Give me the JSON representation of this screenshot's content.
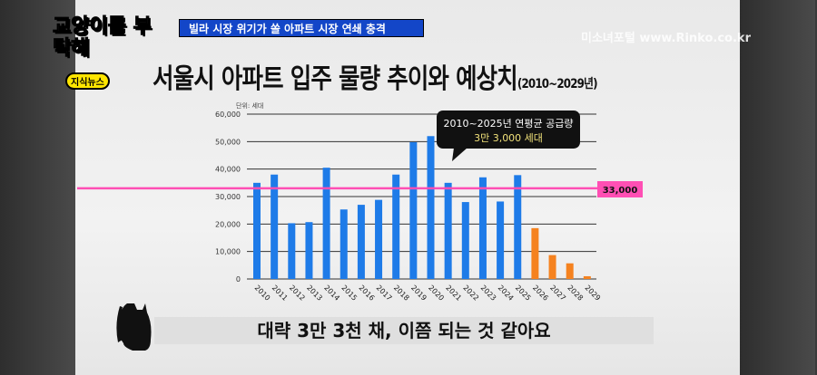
{
  "show": {
    "logo": "교양이를 부탁해",
    "tag": "지식뉴스",
    "banner": "빌라 시장 위기가 쏠 아파트 시장 연쇄 충격",
    "watermark": "미소녀포털 www.Rinko.co.kr"
  },
  "subtitle": "대략 3만 3천 채, 이쯤 되는 것 같아요",
  "chart_data": {
    "type": "bar",
    "title": "서울시 아파트 입주 물량 추이와 예상치",
    "title_suffix": "(2010~2029년)",
    "unit": "단위: 세대",
    "categories": [
      "2010",
      "2011",
      "2012",
      "2013",
      "2014",
      "2015",
      "2016",
      "2017",
      "2018",
      "2019",
      "2020",
      "2021",
      "2022",
      "2023",
      "2024",
      "2025",
      "2026",
      "2027",
      "2028",
      "2029"
    ],
    "values": [
      35000,
      38000,
      20300,
      20700,
      40500,
      25300,
      27000,
      28800,
      38000,
      49800,
      52000,
      35000,
      28000,
      37000,
      28200,
      37800,
      18500,
      8700,
      5700,
      1000
    ],
    "colors": {
      "actual": "#1e7be8",
      "forecast": "#f5821f",
      "avg_line": "#ff4fb4"
    },
    "forecast_from": "2026",
    "ylim": [
      0,
      60000
    ],
    "yticks": [
      "0",
      "10,000",
      "20,000",
      "30,000",
      "40,000",
      "50,000",
      "60,000"
    ],
    "grid": true,
    "reference_line": {
      "value": 33000,
      "label": "33,000"
    },
    "callout": {
      "line1": "2010~2025년 연평균 공급량",
      "line2": "3만 3,000 세대"
    }
  }
}
